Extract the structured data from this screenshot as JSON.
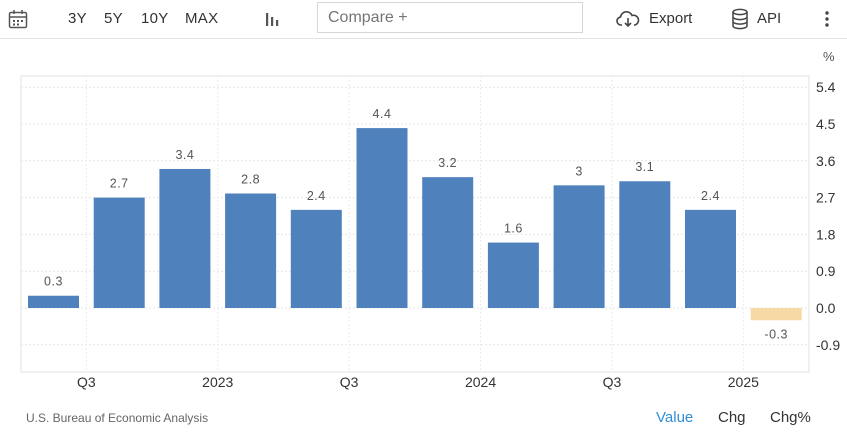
{
  "toolbar": {
    "ranges": [
      "3Y",
      "5Y",
      "10Y",
      "MAX"
    ],
    "compare_placeholder": "Compare +",
    "export_label": "Export",
    "api_label": "API"
  },
  "footer": {
    "source": "U.S. Bureau of Economic Analysis",
    "tabs": [
      "Value",
      "Chg",
      "Chg%"
    ],
    "active_tab": "Value"
  },
  "colors": {
    "positive": "#4f81bd",
    "negative": "#f6d9a4",
    "active_tab": "#2f8fd8"
  },
  "chart_data": {
    "type": "bar",
    "unit_label": "%",
    "values": [
      0.3,
      2.7,
      3.4,
      2.8,
      2.4,
      4.4,
      3.2,
      1.6,
      3,
      3.1,
      2.4,
      -0.3
    ],
    "value_labels": [
      "0.3",
      "2.7",
      "3.4",
      "2.8",
      "2.4",
      "4.4",
      "3.2",
      "1.6",
      "3",
      "3.1",
      "2.4",
      "-0.3"
    ],
    "x_tick_labels": [
      "Q3",
      "2023",
      "Q3",
      "2024",
      "Q3",
      "2025"
    ],
    "y_ticks": [
      -0.9,
      0,
      0.9,
      1.8,
      2.7,
      3.6,
      4.5,
      5.4
    ],
    "y_tick_labels": [
      "-0.9",
      "0.0",
      "0.9",
      "1.8",
      "2.7",
      "3.6",
      "4.5",
      "5.4"
    ],
    "ylim": [
      -1.3,
      5.4
    ],
    "y_axis_position": "right",
    "grid": true,
    "legend": false
  }
}
